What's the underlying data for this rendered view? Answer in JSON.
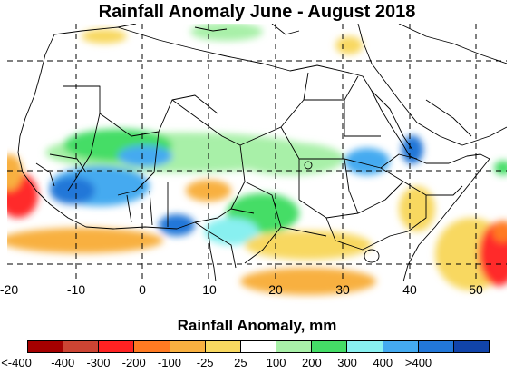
{
  "map": {
    "title": "Rainfall Anomaly June - August 2018",
    "longitude_labels": [
      "-20",
      "-10",
      "0",
      "10",
      "20",
      "30",
      "40",
      "50"
    ],
    "legend": {
      "title": "Rainfall Anomaly, mm",
      "labels": [
        "<-400",
        "-400",
        "-300",
        "-200",
        "-100",
        "-25",
        "25",
        "100",
        "200",
        "300",
        "400",
        ">400"
      ],
      "colors": [
        "#a50000",
        "#cc4433",
        "#ff2222",
        "#ff7a22",
        "#f8b040",
        "#f8d860",
        "#ffffff",
        "#a8f0a8",
        "#44dd66",
        "#88f0f0",
        "#44aaf0",
        "#2277d8",
        "#1144aa"
      ]
    }
  }
}
